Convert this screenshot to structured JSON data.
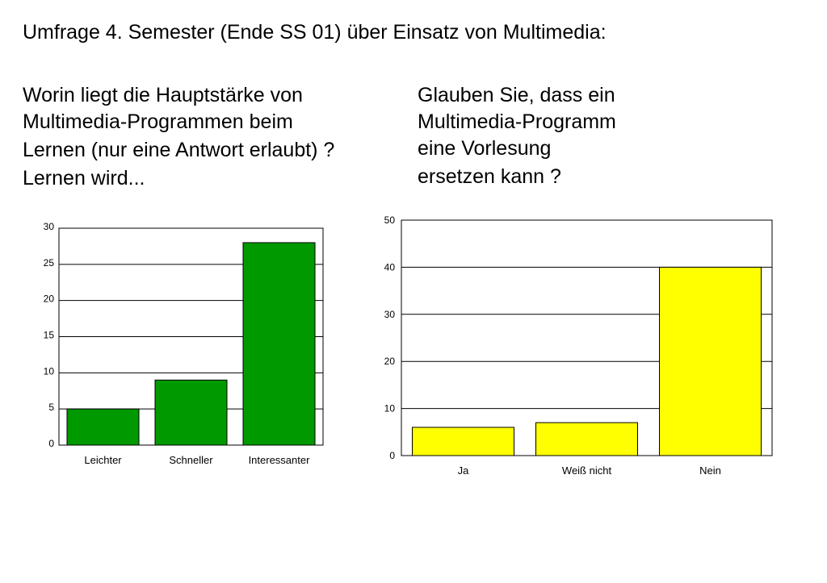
{
  "slide": {
    "title": "Umfrage 4. Semester (Ende SS 01) über Einsatz von Multimedia:"
  },
  "questions": [
    {
      "lines": [
        "Worin liegt die Hauptstärke von",
        "Multimedia-Programmen beim",
        "Lernen (nur eine Antwort erlaubt) ?",
        "Lernen wird..."
      ]
    },
    {
      "lines": [
        "Glauben Sie, dass ein",
        "Multimedia-Programm",
        "eine Vorlesung",
        "ersetzen kann ?"
      ]
    }
  ],
  "chart_data": [
    {
      "type": "bar",
      "categories": [
        "Leichter",
        "Schneller",
        "Interessanter"
      ],
      "values": [
        5,
        9,
        28
      ],
      "ylim": [
        0,
        30
      ],
      "yticks": [
        0,
        5,
        10,
        15,
        20,
        25,
        30
      ],
      "grid": true,
      "color": "#009900"
    },
    {
      "type": "bar",
      "categories": [
        "Ja",
        "Weiß nicht",
        "Nein"
      ],
      "values": [
        6,
        7,
        40
      ],
      "ylim": [
        0,
        50
      ],
      "yticks": [
        0,
        10,
        20,
        30,
        40,
        50
      ],
      "grid": true,
      "color": "#ffff00"
    }
  ]
}
